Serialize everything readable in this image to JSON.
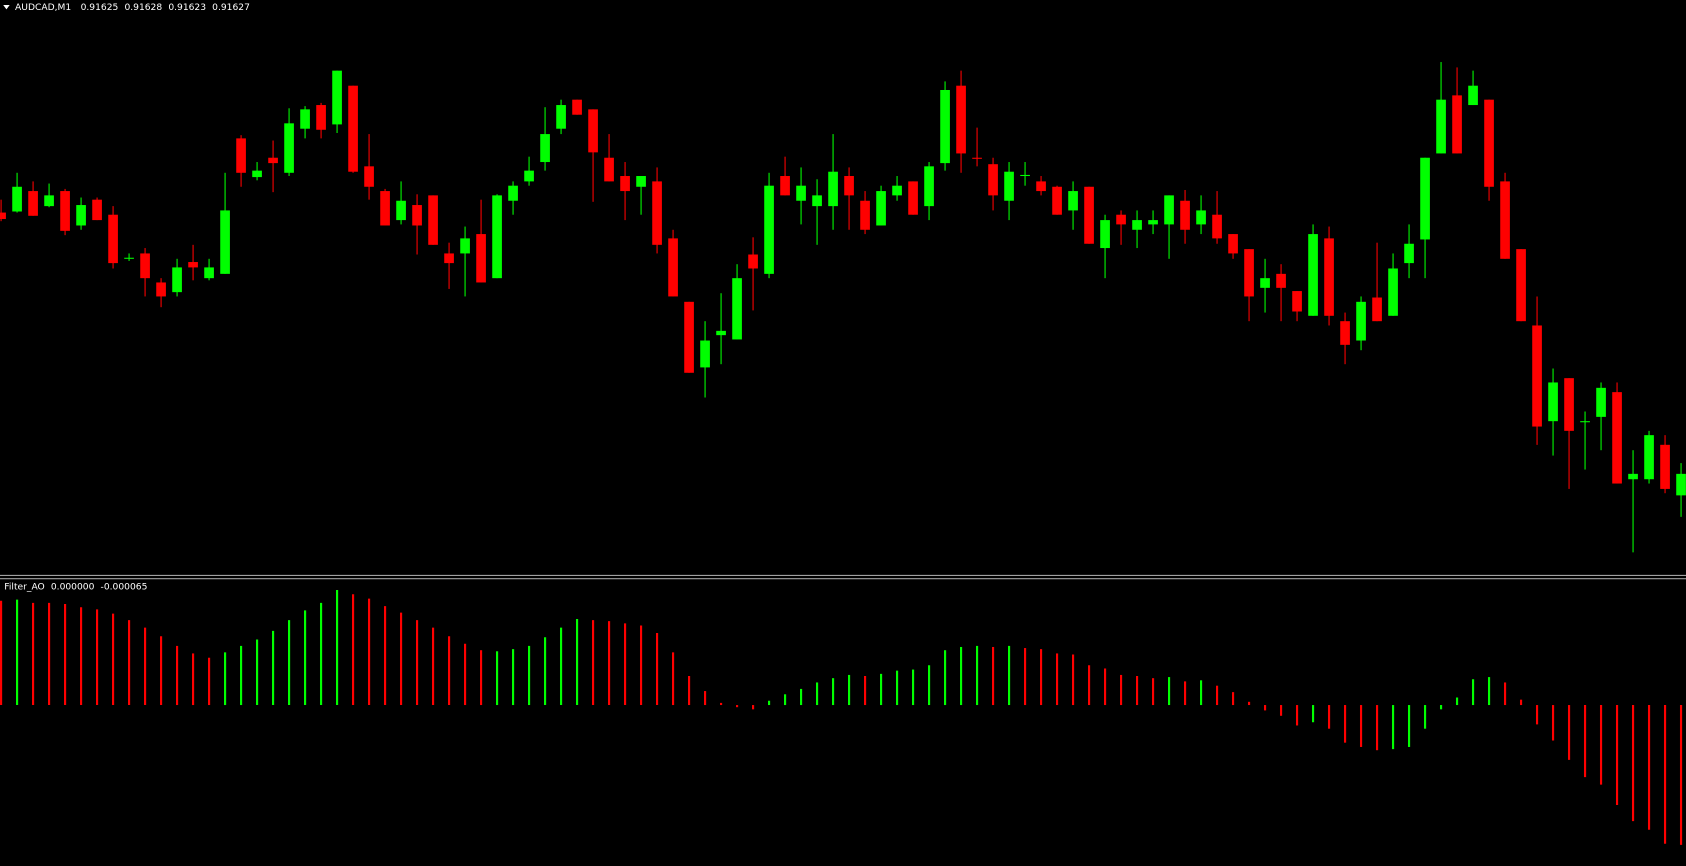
{
  "chart_data": [
    {
      "type": "candlestick",
      "title": "AUDCAD,M1",
      "header_values": [
        0.91625,
        0.91628,
        0.91623,
        0.91627
      ],
      "up_color": "#00ff00",
      "down_color": "#ff0000",
      "ylim": [
        0.916177,
        0.91671
      ],
      "open": [
        0.916513,
        0.916514,
        0.916533,
        0.916519,
        0.916533,
        0.916501,
        0.916525,
        0.916511,
        0.91647,
        0.916475,
        0.916448,
        0.916439,
        0.916467,
        0.916452,
        0.916456,
        0.916582,
        0.916546,
        0.916564,
        0.91655,
        0.916591,
        0.916613,
        0.916595,
        0.916631,
        0.916556,
        0.916533,
        0.916506,
        0.91652,
        0.916529,
        0.916475,
        0.916475,
        0.916493,
        0.916452,
        0.916524,
        0.916542,
        0.91656,
        0.916591,
        0.916618,
        0.916609,
        0.916564,
        0.916547,
        0.916537,
        0.916542,
        0.916489,
        0.91643,
        0.916369,
        0.916399,
        0.916395,
        0.916474,
        0.916456,
        0.916547,
        0.916524,
        0.916519,
        0.916519,
        0.916547,
        0.916524,
        0.916501,
        0.916529,
        0.916542,
        0.916519,
        0.916559,
        0.916631,
        0.916564,
        0.916558,
        0.916524,
        0.916547,
        0.916542,
        0.916537,
        0.916515,
        0.916537,
        0.91648,
        0.916511,
        0.916497,
        0.916502,
        0.916502,
        0.916524,
        0.916502,
        0.916511,
        0.916493,
        0.916479,
        0.916443,
        0.916456,
        0.91644,
        0.916417,
        0.916489,
        0.916412,
        0.916394,
        0.916434,
        0.916417,
        0.916466,
        0.916488,
        0.916568,
        0.916622,
        0.916613,
        0.916618,
        0.916542,
        0.916479,
        0.916408,
        0.916319,
        0.916359,
        0.916318,
        0.916323,
        0.916346,
        0.916265,
        0.916265,
        0.916297,
        0.91625
      ],
      "high": [
        0.916525,
        0.91655,
        0.916542,
        0.91654,
        0.916535,
        0.916527,
        0.916527,
        0.916519,
        0.916475,
        0.91648,
        0.916452,
        0.91647,
        0.916483,
        0.91647,
        0.91655,
        0.916585,
        0.91656,
        0.91658,
        0.91661,
        0.916612,
        0.916615,
        0.916645,
        0.916631,
        0.916586,
        0.916535,
        0.916542,
        0.91653,
        0.916529,
        0.916485,
        0.9165,
        0.916525,
        0.91653,
        0.916542,
        0.916565,
        0.916611,
        0.916618,
        0.916618,
        0.916609,
        0.916586,
        0.91656,
        0.916547,
        0.916555,
        0.916497,
        0.91643,
        0.916412,
        0.916438,
        0.916465,
        0.91649,
        0.91655,
        0.916565,
        0.916555,
        0.916544,
        0.916586,
        0.916555,
        0.916533,
        0.916538,
        0.916547,
        0.916542,
        0.91656,
        0.916635,
        0.916645,
        0.916592,
        0.916564,
        0.91656,
        0.91656,
        0.916547,
        0.916538,
        0.916542,
        0.916537,
        0.916511,
        0.916515,
        0.916515,
        0.916515,
        0.916529,
        0.916534,
        0.916529,
        0.916533,
        0.916493,
        0.916479,
        0.91647,
        0.916465,
        0.91644,
        0.916502,
        0.9165,
        0.91642,
        0.916435,
        0.916485,
        0.916475,
        0.916502,
        0.916564,
        0.916653,
        0.916648,
        0.916645,
        0.916618,
        0.91655,
        0.916479,
        0.916435,
        0.916368,
        0.916359,
        0.916328,
        0.916355,
        0.916355,
        0.916292,
        0.91631,
        0.916306,
        0.91628
      ],
      "low": [
        0.916505,
        0.916513,
        0.91651,
        0.916518,
        0.916492,
        0.916497,
        0.916506,
        0.916461,
        0.916468,
        0.916435,
        0.916425,
        0.916435,
        0.91645,
        0.91645,
        0.916456,
        0.916537,
        0.916543,
        0.916532,
        0.916547,
        0.916582,
        0.916582,
        0.916587,
        0.91655,
        0.916525,
        0.916501,
        0.916502,
        0.916474,
        0.916483,
        0.916442,
        0.916435,
        0.916448,
        0.916452,
        0.916511,
        0.916538,
        0.916552,
        0.916586,
        0.916604,
        0.916523,
        0.916542,
        0.916506,
        0.916511,
        0.916475,
        0.916435,
        0.916364,
        0.916341,
        0.916372,
        0.916395,
        0.916422,
        0.916452,
        0.916529,
        0.916502,
        0.916483,
        0.916497,
        0.916497,
        0.916493,
        0.916501,
        0.916524,
        0.916511,
        0.916506,
        0.916552,
        0.91655,
        0.916556,
        0.916515,
        0.916506,
        0.916538,
        0.916529,
        0.916511,
        0.916497,
        0.916484,
        0.916452,
        0.916483,
        0.91648,
        0.916493,
        0.91647,
        0.916484,
        0.916493,
        0.916484,
        0.91647,
        0.916412,
        0.91642,
        0.916412,
        0.916412,
        0.916417,
        0.916408,
        0.916372,
        0.916385,
        0.916412,
        0.916417,
        0.916452,
        0.916452,
        0.916568,
        0.916568,
        0.916613,
        0.916524,
        0.91647,
        0.916412,
        0.916297,
        0.916287,
        0.916256,
        0.916274,
        0.916292,
        0.916261,
        0.916197,
        0.916261,
        0.916252,
        0.91623
      ],
      "close": [
        0.916507,
        0.916537,
        0.91651,
        0.916529,
        0.916496,
        0.91652,
        0.916506,
        0.916466,
        0.916471,
        0.916452,
        0.916435,
        0.916462,
        0.916462,
        0.916462,
        0.916515,
        0.91655,
        0.916552,
        0.916559,
        0.916596,
        0.916609,
        0.91659,
        0.916645,
        0.916551,
        0.916537,
        0.916501,
        0.916524,
        0.916501,
        0.916483,
        0.916466,
        0.916489,
        0.916448,
        0.916529,
        0.916538,
        0.916552,
        0.916586,
        0.916613,
        0.916604,
        0.916569,
        0.916542,
        0.916533,
        0.916547,
        0.916483,
        0.916435,
        0.916364,
        0.916394,
        0.916403,
        0.916452,
        0.916461,
        0.916538,
        0.916529,
        0.916538,
        0.916529,
        0.916551,
        0.916529,
        0.916497,
        0.916533,
        0.916538,
        0.916511,
        0.916556,
        0.916627,
        0.916568,
        0.916563,
        0.916529,
        0.916551,
        0.916548,
        0.916533,
        0.916511,
        0.916533,
        0.916484,
        0.916506,
        0.916502,
        0.916506,
        0.916506,
        0.916529,
        0.916497,
        0.916515,
        0.916489,
        0.916475,
        0.916435,
        0.916452,
        0.916443,
        0.916421,
        0.916493,
        0.916417,
        0.91639,
        0.91643,
        0.916412,
        0.916461,
        0.916484,
        0.916564,
        0.916618,
        0.916568,
        0.916631,
        0.916537,
        0.91647,
        0.916412,
        0.916314,
        0.916355,
        0.91631,
        0.916319,
        0.91635,
        0.916261,
        0.91627,
        0.916306,
        0.916256,
        0.91627
      ]
    },
    {
      "type": "histogram",
      "title": "Filter_AO",
      "header_values": [
        {
          "value": 0,
          "label": "0.000000"
        },
        -6.5e-05
      ],
      "ylim": [
        -7.45e-05,
        5.75e-05
      ],
      "values": [
        4.85e-05,
        4.9e-05,
        4.75e-05,
        4.75e-05,
        4.7e-05,
        4.55e-05,
        4.45e-05,
        4.25e-05,
        3.95e-05,
        3.6e-05,
        3.2e-05,
        2.75e-05,
        2.4e-05,
        2.2e-05,
        2.45e-05,
        2.75e-05,
        3.05e-05,
        3.45e-05,
        3.95e-05,
        4.4e-05,
        4.75e-05,
        5.35e-05,
        5.15e-05,
        4.95e-05,
        4.6e-05,
        4.3e-05,
        3.95e-05,
        3.6e-05,
        3.2e-05,
        2.85e-05,
        2.55e-05,
        2.5e-05,
        2.6e-05,
        2.75e-05,
        3.15e-05,
        3.6e-05,
        4e-05,
        3.95e-05,
        3.9e-05,
        3.8e-05,
        3.7e-05,
        3.35e-05,
        2.45e-05,
        1.35e-05,
        6.5e-06,
        1e-06,
        -1e-06,
        -2e-06,
        2e-06,
        5e-06,
        7.5e-06,
        1.05e-05,
        1.25e-05,
        1.4e-05,
        1.35e-05,
        1.45e-05,
        1.6e-05,
        1.65e-05,
        1.85e-05,
        2.55e-05,
        2.7e-05,
        2.75e-05,
        2.7e-05,
        2.75e-05,
        2.65e-05,
        2.6e-05,
        2.4e-05,
        2.35e-05,
        1.85e-05,
        1.7e-05,
        1.4e-05,
        1.35e-05,
        1.25e-05,
        1.3e-05,
        1.1e-05,
        1.15e-05,
        9e-06,
        6e-06,
        1.5e-06,
        -2.5e-06,
        -5e-06,
        -9.5e-06,
        -8e-06,
        -1.1e-05,
        -1.75e-05,
        -1.95e-05,
        -2.1e-05,
        -2.05e-05,
        -1.95e-05,
        -1.1e-05,
        -2e-06,
        3.5e-06,
        1.2e-05,
        1.3e-05,
        1.05e-05,
        2.5e-06,
        -9e-06,
        -1.65e-05,
        -2.55e-05,
        -3.35e-05,
        -3.7e-05,
        -4.65e-05,
        -5.4e-05,
        -5.8e-05,
        -6.45e-05,
        -6.5e-05
      ],
      "colors": [
        "red",
        "lime",
        "red",
        "red",
        "red",
        "red",
        "red",
        "red",
        "red",
        "red",
        "red",
        "red",
        "red",
        "red",
        "lime",
        "lime",
        "lime",
        "lime",
        "lime",
        "lime",
        "lime",
        "lime",
        "red",
        "red",
        "red",
        "red",
        "red",
        "red",
        "red",
        "red",
        "red",
        "lime",
        "lime",
        "lime",
        "lime",
        "lime",
        "lime",
        "red",
        "red",
        "red",
        "red",
        "red",
        "red",
        "red",
        "red",
        "red",
        "red",
        "red",
        "lime",
        "lime",
        "lime",
        "lime",
        "lime",
        "lime",
        "red",
        "lime",
        "lime",
        "lime",
        "lime",
        "lime",
        "lime",
        "lime",
        "red",
        "lime",
        "red",
        "red",
        "red",
        "red",
        "red",
        "red",
        "red",
        "red",
        "red",
        "lime",
        "red",
        "lime",
        "red",
        "red",
        "red",
        "red",
        "red",
        "red",
        "lime",
        "red",
        "red",
        "red",
        "red",
        "lime",
        "lime",
        "lime",
        "lime",
        "lime",
        "lime",
        "lime",
        "red",
        "red",
        "red",
        "red",
        "red",
        "red",
        "red",
        "red",
        "red",
        "red",
        "red",
        "red"
      ]
    }
  ]
}
